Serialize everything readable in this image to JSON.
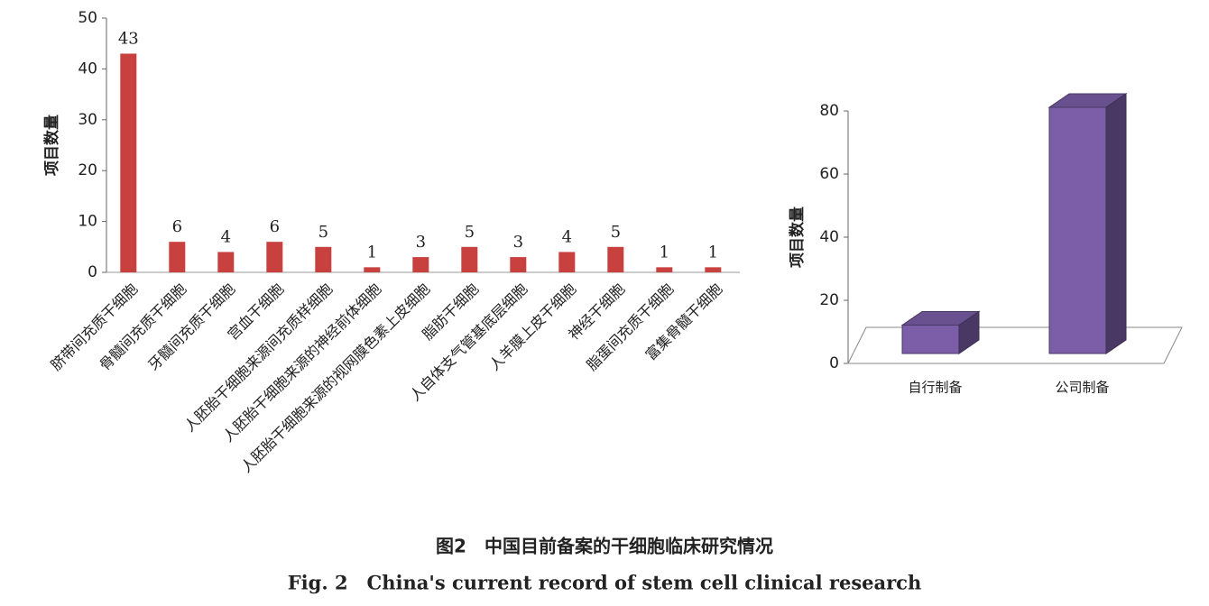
{
  "chart_data": [
    {
      "type": "bar",
      "y_label": "项目数量",
      "categories": [
        "脐带间充质干细胞",
        "骨髓间充质干细胞",
        "牙髓间充质干细胞",
        "宫血干细胞",
        "人胚胎干细胞来源间充质样细胞",
        "人胚胎干细胞来源的神经前体细胞",
        "人胚胎干细胞来源的视网膜色素上皮细胞",
        "脂肪干细胞",
        "人自体支气管基底层细胞",
        "人羊膜上皮干细胞",
        "神经干细胞",
        "脂蛋间充质干细胞",
        "富集骨髓干细胞"
      ],
      "values": [
        43,
        6,
        4,
        6,
        5,
        1,
        3,
        5,
        3,
        4,
        5,
        1,
        1
      ],
      "color": "#c9413f",
      "ylim": [
        0,
        50
      ],
      "yticks": [
        0,
        10,
        20,
        30,
        40,
        50
      ],
      "show_value_labels": true,
      "bar_style": "flat"
    },
    {
      "type": "bar",
      "y_label": "项目数量",
      "categories": [
        "自行制备",
        "公司制备"
      ],
      "values": [
        9,
        78
      ],
      "color": "#7b5ea7",
      "ylim": [
        0,
        80
      ],
      "yticks": [
        0,
        20,
        40,
        60,
        80
      ],
      "show_value_labels": false,
      "bar_style": "3d"
    }
  ],
  "caption": {
    "zh": "图2　中国目前备案的干细胞临床研究情况",
    "en": "Fig. 2　China's current record of stem cell clinical research"
  }
}
